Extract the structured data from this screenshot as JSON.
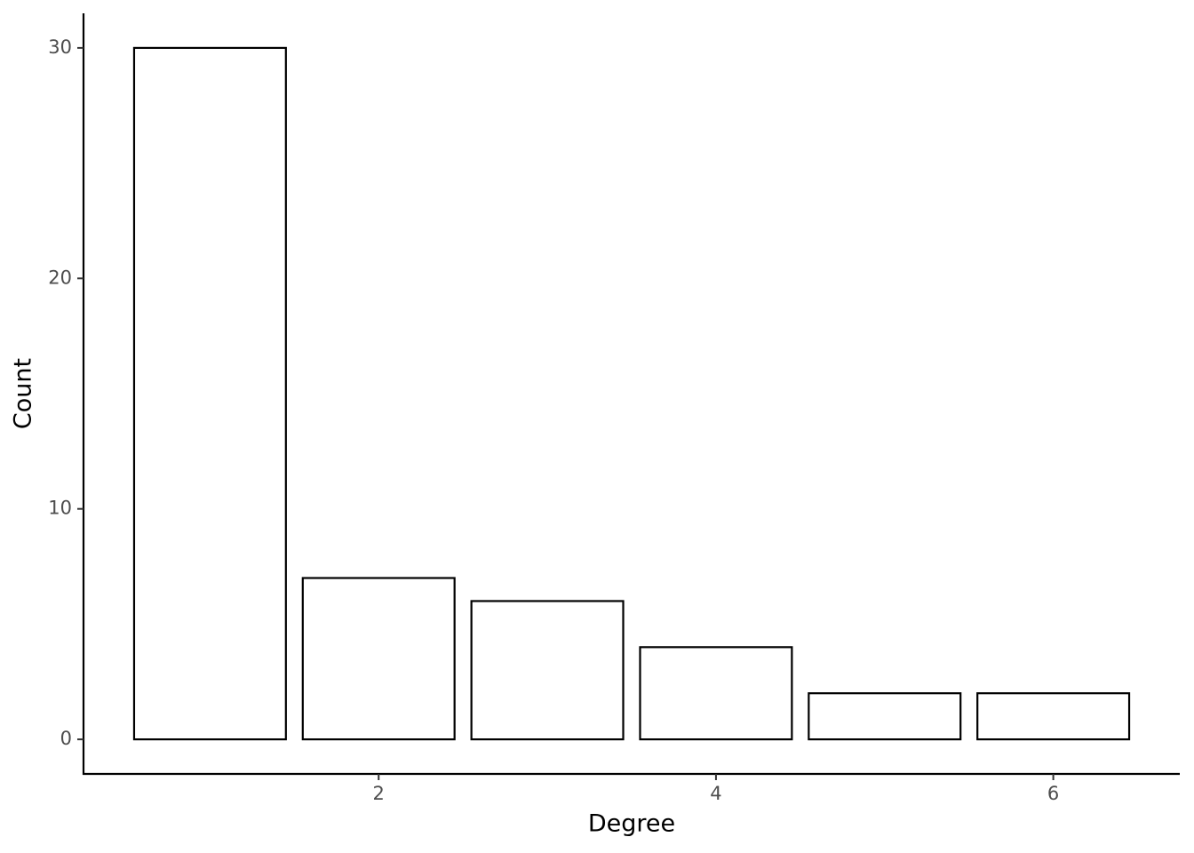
{
  "chart_data": {
    "type": "bar",
    "x_label": "Degree",
    "y_label": "Count",
    "x": [
      1,
      2,
      3,
      4,
      5,
      6
    ],
    "values": [
      30,
      7,
      6,
      4,
      2,
      2
    ],
    "fill": "#ffffff",
    "color": "#000000",
    "xlim": [
      0.25,
      6.75
    ],
    "xticks": [
      2,
      4,
      6
    ],
    "ylim": [
      -1.5,
      31.5
    ],
    "yticks": [
      0,
      10,
      20,
      30
    ],
    "grid": false
  }
}
